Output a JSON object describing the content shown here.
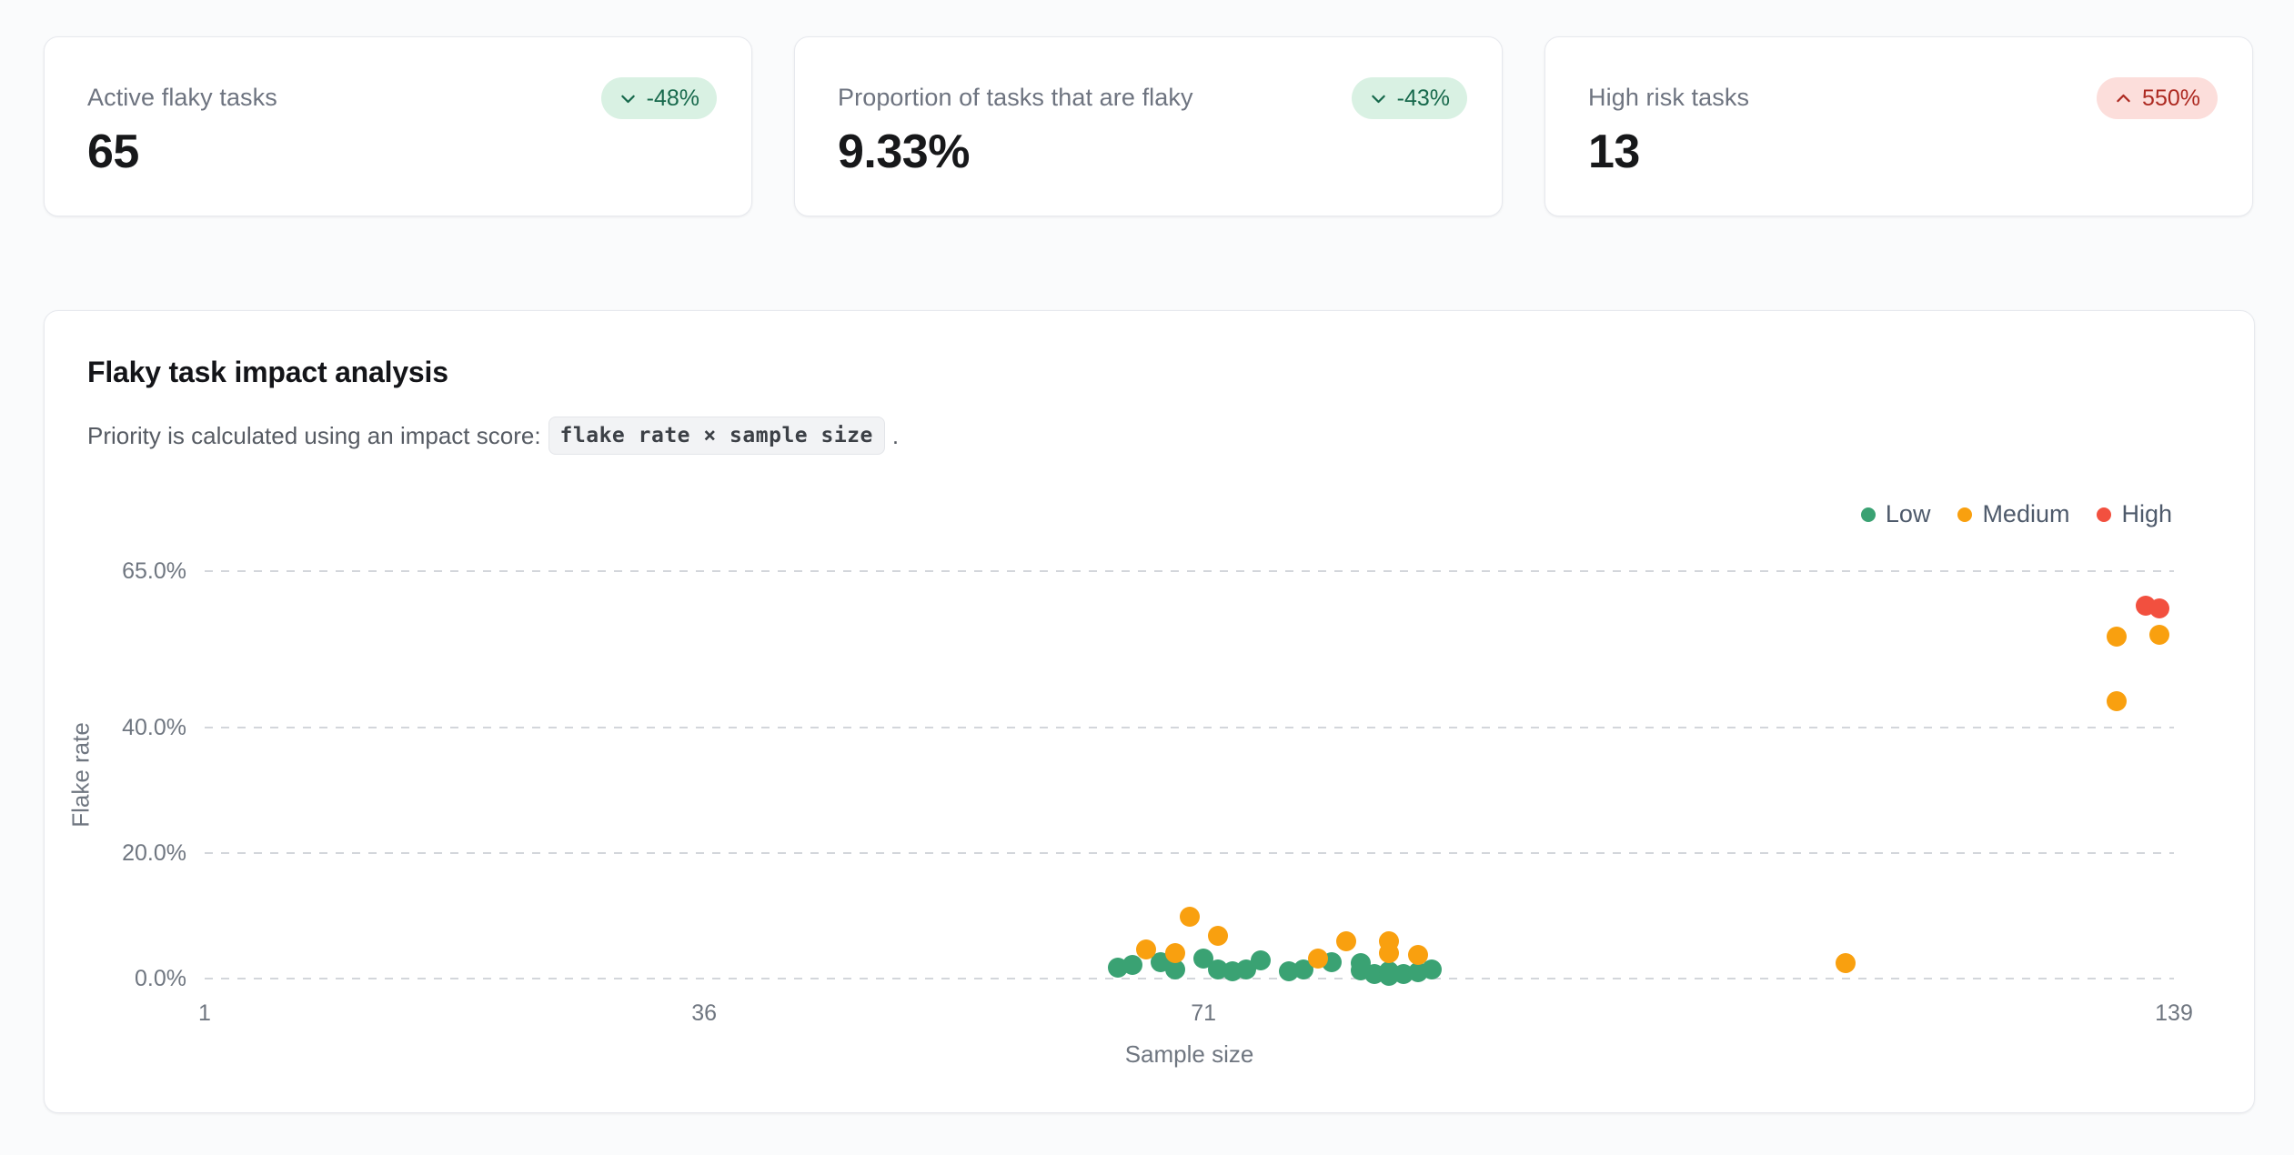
{
  "page": {
    "background": "#fafbfc"
  },
  "stats": [
    {
      "label": "Active flaky tasks",
      "value": "65",
      "delta": "-48%",
      "direction": "down",
      "tone": "positive"
    },
    {
      "label": "Proportion of tasks that are flaky",
      "value": "9.33%",
      "delta": "-43%",
      "direction": "down",
      "tone": "positive"
    },
    {
      "label": "High risk tasks",
      "value": "13",
      "delta": "550%",
      "direction": "up",
      "tone": "negative"
    }
  ],
  "badge_colors": {
    "positive": {
      "bg": "#d9f1e3",
      "text": "#17694c"
    },
    "negative": {
      "bg": "#fcdedb",
      "text": "#ad2a21"
    }
  },
  "chart": {
    "title": "Flaky task impact analysis",
    "subtitle_prefix": "Priority is calculated using an impact score:",
    "formula": "flake rate × sample size",
    "subtitle_suffix": "."
  },
  "chart_data": {
    "type": "scatter",
    "title": "Flaky task impact analysis",
    "xlabel": "Sample size",
    "ylabel": "Flake rate",
    "xlim": [
      1,
      139
    ],
    "ylim": [
      0,
      65
    ],
    "x_ticks": [
      1,
      36,
      71,
      139
    ],
    "y_ticks": [
      {
        "value": 65,
        "label": "65.0%"
      },
      {
        "value": 40,
        "label": "40.0%"
      },
      {
        "value": 20,
        "label": "20.0%"
      },
      {
        "value": 0,
        "label": "0.0%"
      }
    ],
    "grid": "horizontal-dashed",
    "legend_position": "top-right",
    "point_format": "[sample_size, flake_rate_percent]",
    "series": [
      {
        "name": "Low",
        "color": "#3aa273",
        "points": [
          [
            65,
            1.8
          ],
          [
            66,
            2.2
          ],
          [
            68,
            2.6
          ],
          [
            69,
            1.5
          ],
          [
            71,
            3.2
          ],
          [
            72,
            1.5
          ],
          [
            73,
            1.2
          ],
          [
            74,
            1.5
          ],
          [
            75,
            2.9
          ],
          [
            77,
            1.2
          ],
          [
            78,
            1.5
          ],
          [
            80,
            2.6
          ],
          [
            82,
            2.5
          ],
          [
            82,
            1.3
          ],
          [
            83,
            0.7
          ],
          [
            84,
            1.2
          ],
          [
            84,
            0.4
          ],
          [
            85,
            0.7
          ],
          [
            86,
            1.0
          ],
          [
            87,
            1.4
          ]
        ]
      },
      {
        "name": "Medium",
        "color": "#f9a00f",
        "points": [
          [
            67,
            4.6
          ],
          [
            69,
            4.1
          ],
          [
            70,
            9.9
          ],
          [
            72,
            6.8
          ],
          [
            79,
            3.2
          ],
          [
            81,
            6.0
          ],
          [
            84,
            6.0
          ],
          [
            84,
            4.1
          ],
          [
            86,
            3.7
          ],
          [
            116,
            2.5
          ],
          [
            135,
            44.3
          ],
          [
            135,
            54.6
          ],
          [
            138,
            54.8
          ]
        ]
      },
      {
        "name": "High",
        "color": "#f2503f",
        "points": [
          [
            137,
            59.5
          ],
          [
            138,
            59.0
          ]
        ]
      }
    ]
  }
}
